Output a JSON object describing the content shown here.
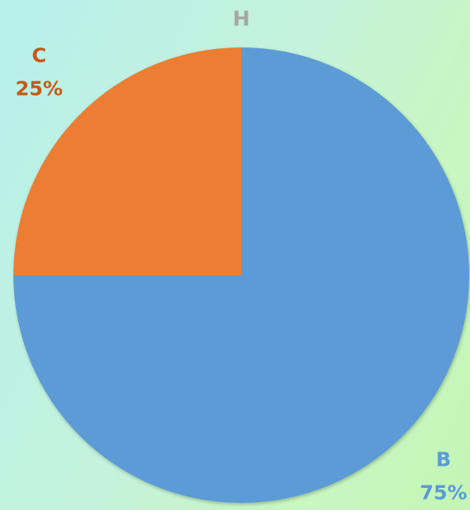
{
  "chart_data": {
    "type": "pie",
    "title": "H",
    "categories": [
      "B",
      "C"
    ],
    "values": [
      75,
      25
    ],
    "value_labels": [
      "75%",
      "25%"
    ],
    "colors": [
      "#5b9bd5",
      "#ed7d31"
    ],
    "label_colors": [
      "#5b9bd5",
      "#c55a11"
    ]
  }
}
